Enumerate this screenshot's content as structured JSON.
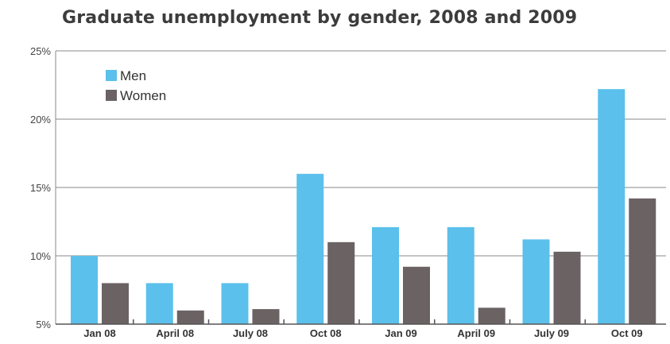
{
  "chart_data": {
    "type": "bar",
    "title": "Graduate unemployment by gender, 2008 and 2009",
    "xlabel": "",
    "ylabel": "",
    "categories": [
      "Jan 08",
      "April 08",
      "July 08",
      "Oct 08",
      "Jan 09",
      "April 09",
      "July 09",
      "Oct 09"
    ],
    "series": [
      {
        "name": "Men",
        "color": "#5bc0eb",
        "values": [
          10.0,
          8.0,
          8.0,
          16.0,
          12.1,
          12.1,
          11.2,
          22.2
        ]
      },
      {
        "name": "Women",
        "color": "#6b6264",
        "values": [
          8.0,
          6.0,
          6.1,
          11.0,
          9.2,
          6.2,
          10.3,
          14.2
        ]
      }
    ],
    "ylim": [
      5,
      25
    ],
    "yticks": [
      "5%",
      "10%",
      "15%",
      "20%",
      "25%"
    ],
    "ytick_values": [
      5,
      10,
      15,
      20,
      25
    ],
    "grid": true,
    "legend_position": "top-left"
  }
}
